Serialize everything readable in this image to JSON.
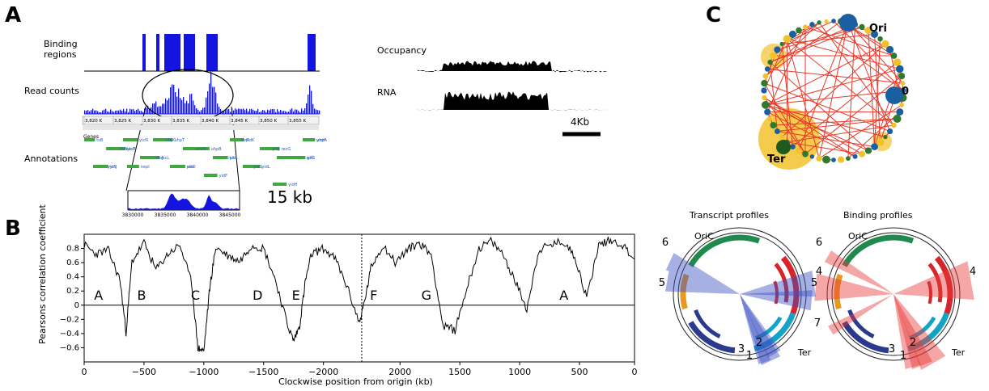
{
  "panels": {
    "a": "A",
    "b": "B",
    "c": "C"
  },
  "panel_a": {
    "track_labels": {
      "binding_line1": "Binding",
      "binding_line2": "regions",
      "read_counts": "Read counts",
      "annotations": "Annotations"
    },
    "genes_label": "Genes",
    "ruler_ticks": [
      "3,820 K",
      "3,825 K",
      "3,830 K",
      "3,835 K",
      "3,840 K",
      "3,845 K",
      "3,850 K",
      "3,855 K"
    ],
    "gene_names": [
      "tsB",
      "xanP",
      "yicL",
      "ade",
      "yidF",
      "yidK",
      "recG",
      "gltS",
      "yicJ",
      "nepI",
      "uhpT",
      "ilvB",
      "yidI",
      "yidL",
      "lmrH",
      "yicH",
      "yicT",
      "ribA",
      "yicO",
      "uhpB",
      "ilvR",
      "yidJ",
      "selC",
      "yicS",
      "yicN",
      "uhpC",
      "emrD",
      "ilvbL",
      "yidG",
      "yidH",
      "uhpA",
      "ilvN"
    ],
    "inset_ticks": [
      "3830000",
      "3835000",
      "3840000",
      "3845000"
    ],
    "inset_span_label": "15 kb",
    "occupancy_label": "Occupancy",
    "rna_label": "RNA",
    "scale_bar_label": "4Kb"
  },
  "colors": {
    "blue": "#1414e0",
    "green": "#3fa83f",
    "red": "#e83a2a",
    "black": "#000000"
  },
  "chart_data": {
    "type": "line",
    "title": "",
    "ylabel": "Pearsons correlation coefficient",
    "xlabel": "Clockwise position from origin (kb)",
    "x_tick_labels": [
      "0",
      "−500",
      "−1000",
      "−1500",
      "−2000",
      "2000",
      "1500",
      "1000",
      "500",
      "0"
    ],
    "x_ticks": [
      0,
      -500,
      -1000,
      -1500,
      -2000,
      2000,
      1500,
      1000,
      500,
      0
    ],
    "y_tick_labels": [
      "0.8",
      "0.6",
      "0.4",
      "0.2",
      "0",
      "−0.2",
      "−0.4",
      "−0.6"
    ],
    "y_ticks": [
      0.8,
      0.6,
      0.4,
      0.2,
      0,
      -0.2,
      -0.4,
      -0.6
    ],
    "ylim": [
      -0.8,
      1.0
    ],
    "terminus_divider": 2320,
    "domain_labels": [
      "A",
      "B",
      "C",
      "D",
      "E",
      "F",
      "G",
      "A"
    ],
    "x": [
      0,
      100,
      200,
      300,
      350,
      400,
      500,
      600,
      700,
      800,
      900,
      950,
      1000,
      1050,
      1100,
      1200,
      1300,
      1400,
      1500,
      1600,
      1700,
      1750,
      1800,
      1850,
      1900,
      2000,
      2100,
      2200,
      2300,
      2350,
      2400,
      2500,
      2600,
      2700,
      2800,
      2900,
      3000,
      3100,
      3200,
      3300,
      3400,
      3500,
      3600,
      3700,
      3800,
      3900,
      4000,
      4100,
      4200,
      4300,
      4400,
      4500,
      4600
    ],
    "y": [
      0.85,
      0.72,
      0.78,
      0.35,
      -0.38,
      0.62,
      0.88,
      0.5,
      0.72,
      0.85,
      0.3,
      -0.6,
      -0.65,
      0.25,
      0.82,
      0.7,
      0.62,
      0.85,
      0.8,
      0.35,
      -0.28,
      -0.5,
      -0.3,
      0.35,
      0.72,
      0.8,
      0.65,
      0.25,
      -0.25,
      0.1,
      0.55,
      0.85,
      0.6,
      0.78,
      0.88,
      0.72,
      -0.3,
      -0.35,
      0.25,
      0.8,
      0.9,
      0.72,
      0.35,
      -0.05,
      0.78,
      0.85,
      0.9,
      0.7,
      0.1,
      0.85,
      0.92,
      0.85,
      0.65
    ]
  },
  "panel_c": {
    "ori_label": "Ori",
    "zero_label": "0",
    "ter_label": "Ter",
    "transcript_title": "Transcript profiles",
    "binding_title": "Binding profiles",
    "oric_label": "OriC",
    "ter_small_label": "Ter",
    "transcript_numbers": [
      "6",
      "5",
      "4",
      "3",
      "2",
      "1"
    ],
    "binding_numbers": [
      "6",
      "5",
      "4",
      "7",
      "3",
      "2",
      "1"
    ]
  }
}
